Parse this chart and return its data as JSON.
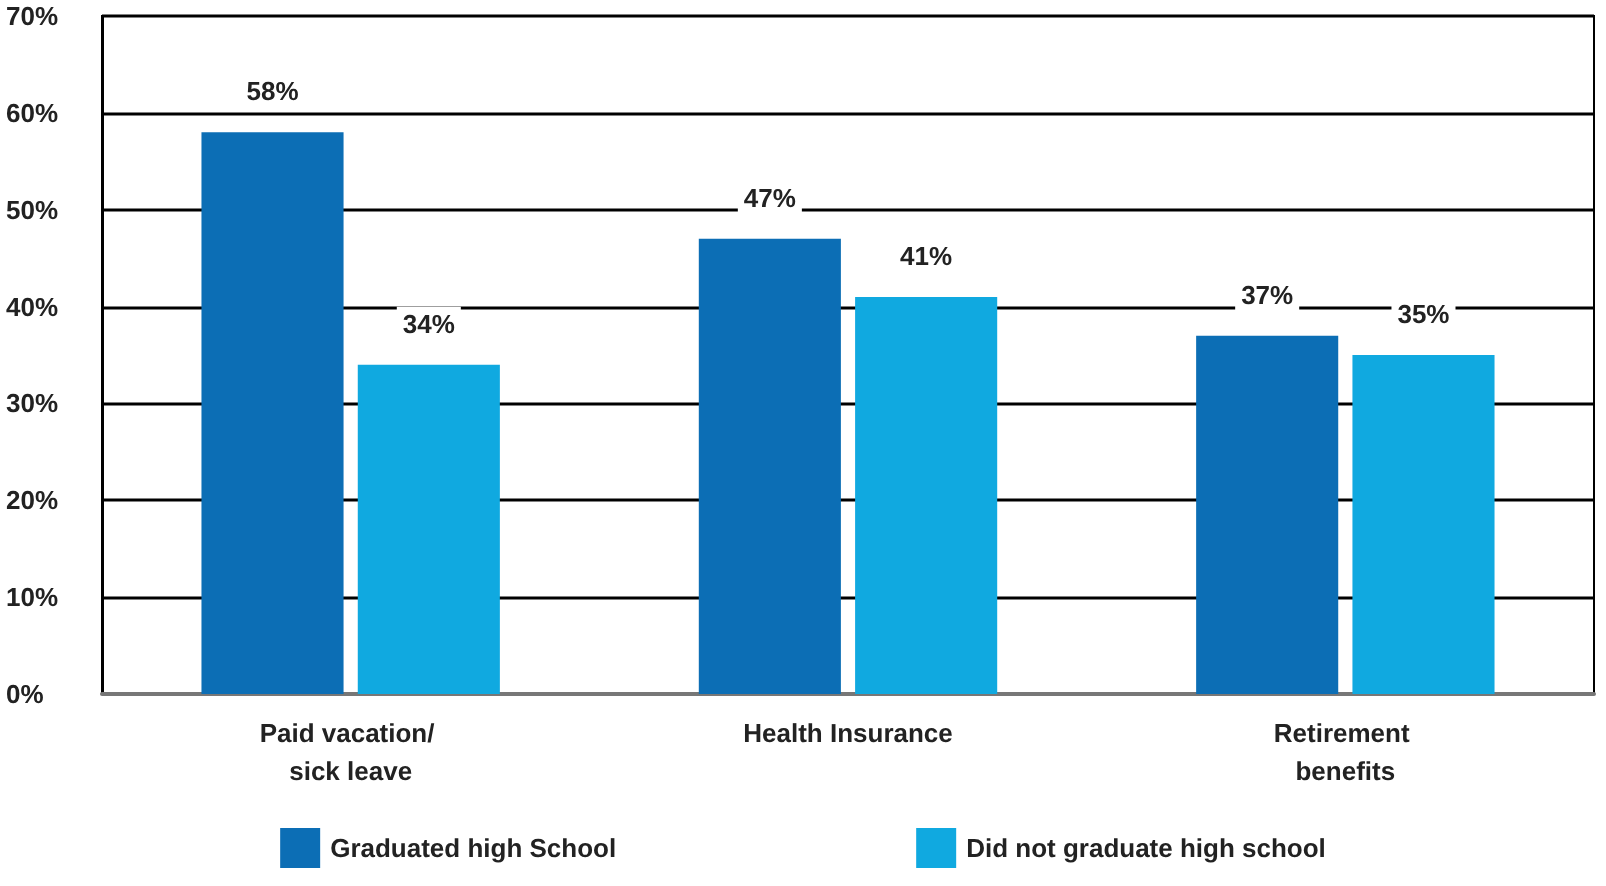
{
  "chart_data": {
    "type": "bar",
    "categories": [
      "Paid vacation/ sick leave",
      "Health Insurance",
      "Retirement benefits"
    ],
    "series": [
      {
        "name": "Graduated high School",
        "color": "#0c6eb5",
        "values": [
          58,
          47,
          37
        ],
        "value_labels": [
          "58%",
          "47%",
          "37%"
        ]
      },
      {
        "name": "Did not graduate high school",
        "color": "#10a9e0",
        "values": [
          34,
          41,
          35
        ],
        "value_labels": [
          "34%",
          "41%",
          "35%"
        ]
      }
    ],
    "ylim": [
      0,
      70
    ],
    "yticks": [
      {
        "value": 0,
        "label": "0%"
      },
      {
        "value": 10,
        "label": "10%"
      },
      {
        "value": 20,
        "label": "20%"
      },
      {
        "value": 30,
        "label": "30%"
      },
      {
        "value": 40,
        "label": "40%"
      },
      {
        "value": 50,
        "label": "50%"
      },
      {
        "value": 60,
        "label": "60%"
      },
      {
        "value": 70,
        "label": "70%"
      }
    ],
    "grid": "y",
    "legend": "bottom"
  }
}
